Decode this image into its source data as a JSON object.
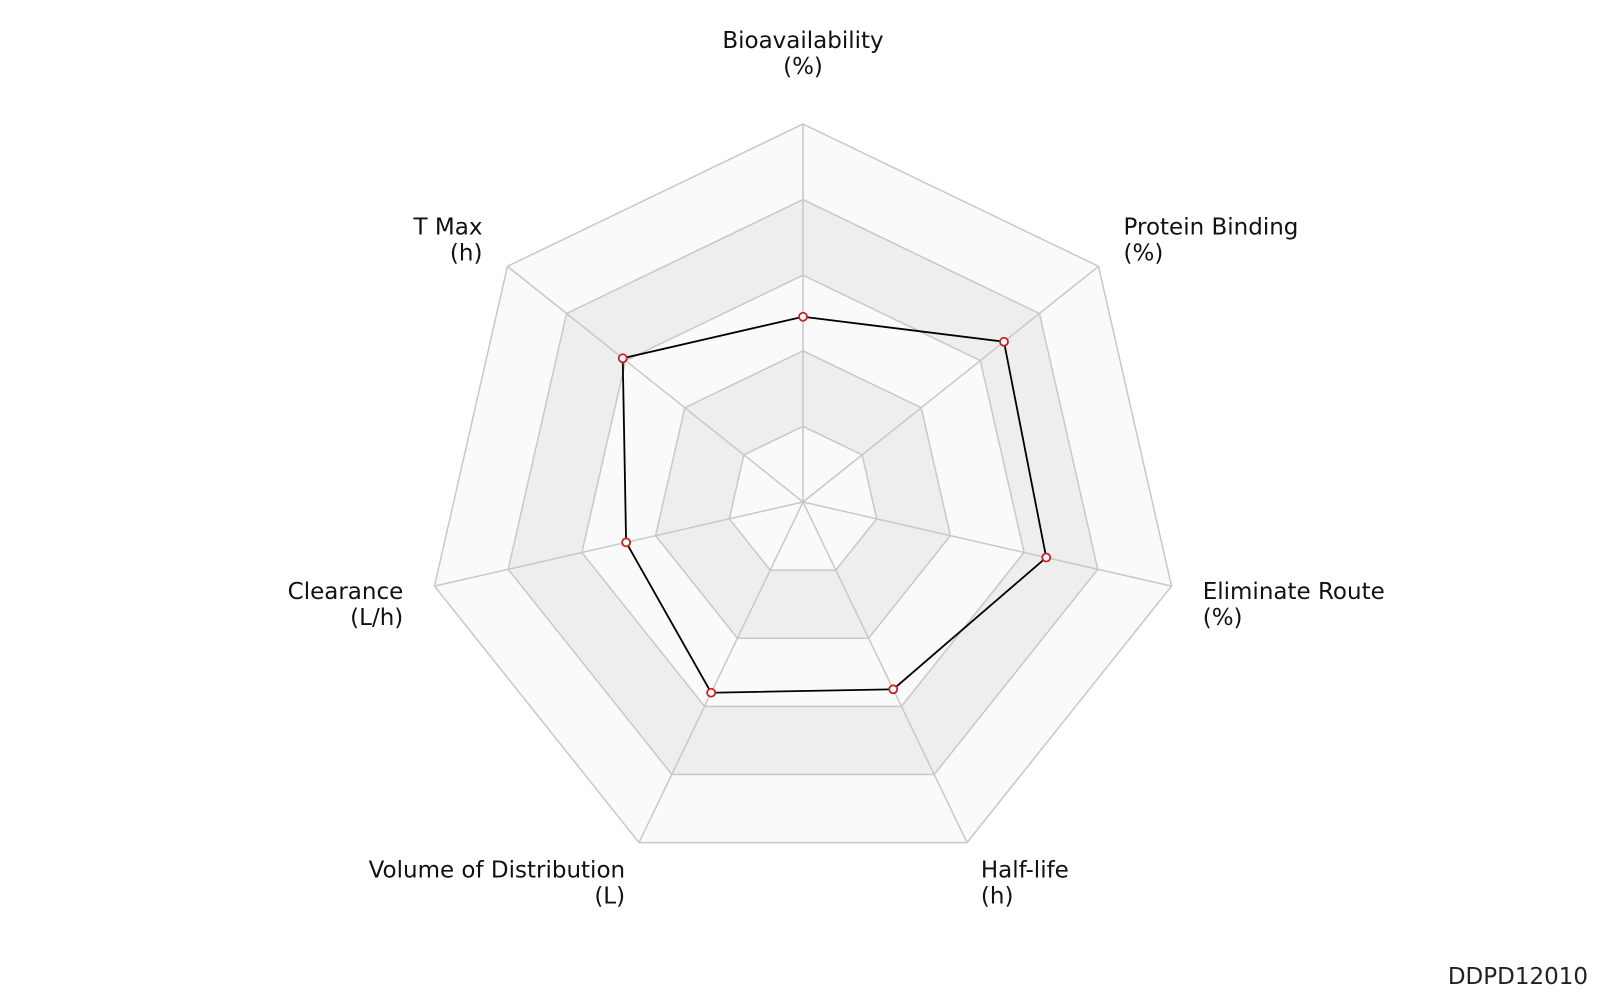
{
  "chart_data": {
    "type": "radar",
    "title": "",
    "axes": [
      {
        "name": "Bioavailability",
        "unit": "(%)"
      },
      {
        "name": "Protein Binding",
        "unit": "(%)"
      },
      {
        "name": "Eliminate Route",
        "unit": "(%)"
      },
      {
        "name": "Half-life",
        "unit": "(h)"
      },
      {
        "name": "Volume of Distribution",
        "unit": "(L)"
      },
      {
        "name": "Clearance",
        "unit": "(L/h)"
      },
      {
        "name": "T Max",
        "unit": "(h)"
      }
    ],
    "levels": 5,
    "series": [
      {
        "values": [
          0.49,
          0.68,
          0.66,
          0.55,
          0.56,
          0.48,
          0.61
        ]
      }
    ],
    "colors": {
      "grid_line": "#c8c8c8",
      "band_dark": "#eeeeee",
      "band_light": "#fafafa",
      "series_line": "#000000",
      "marker_stroke": "#cc2222",
      "marker_fill": "#ffffff"
    }
  },
  "footer": {
    "code": "DDPD12010"
  }
}
